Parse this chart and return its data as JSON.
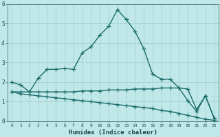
{
  "xlabel": "Humidex (Indice chaleur)",
  "bg_color": "#c0e8e8",
  "grid_color": "#a8d4d4",
  "line_color": "#1a6b6b",
  "x_ticks": [
    0,
    1,
    2,
    3,
    4,
    5,
    6,
    7,
    8,
    9,
    10,
    11,
    12,
    13,
    14,
    15,
    16,
    17,
    18,
    19,
    20,
    21,
    22,
    23
  ],
  "ylim": [
    0,
    6
  ],
  "xlim": [
    -0.5,
    23.5
  ],
  "line1_x": [
    0,
    1,
    2,
    3,
    4,
    5,
    6,
    7,
    8,
    9,
    10,
    11,
    12,
    13,
    14,
    15,
    16,
    17,
    18,
    19,
    20,
    21,
    22,
    23
  ],
  "line1_y": [
    2.0,
    1.85,
    1.5,
    2.2,
    2.65,
    2.65,
    2.7,
    2.65,
    3.5,
    3.8,
    4.4,
    4.85,
    5.7,
    5.2,
    4.6,
    3.7,
    2.4,
    2.15,
    2.15,
    1.7,
    1.65,
    0.6,
    1.3,
    0.15
  ],
  "line2_x": [
    0,
    1,
    2,
    3,
    4,
    5,
    6,
    7,
    8,
    9,
    10,
    11,
    12,
    13,
    14,
    15,
    16,
    17,
    18,
    19,
    20,
    21,
    22,
    23
  ],
  "line2_y": [
    1.5,
    1.5,
    1.5,
    1.5,
    1.5,
    1.5,
    1.5,
    1.5,
    1.55,
    1.55,
    1.55,
    1.6,
    1.6,
    1.6,
    1.65,
    1.65,
    1.65,
    1.7,
    1.7,
    1.7,
    1.05,
    0.5,
    1.3,
    0.15
  ],
  "line3_x": [
    0,
    1,
    2,
    3,
    4,
    5,
    6,
    7,
    8,
    9,
    10,
    11,
    12,
    13,
    14,
    15,
    16,
    17,
    18,
    19,
    20,
    21,
    22,
    23
  ],
  "line3_y": [
    1.5,
    1.4,
    1.35,
    1.3,
    1.25,
    1.2,
    1.15,
    1.1,
    1.05,
    1.0,
    0.95,
    0.9,
    0.85,
    0.8,
    0.75,
    0.7,
    0.65,
    0.55,
    0.5,
    0.4,
    0.3,
    0.2,
    0.1,
    0.05
  ],
  "ylabel_ticks": [
    "0",
    "1",
    "2",
    "3",
    "4",
    "5",
    "6"
  ],
  "ytick_vals": [
    0,
    1,
    2,
    3,
    4,
    5,
    6
  ]
}
